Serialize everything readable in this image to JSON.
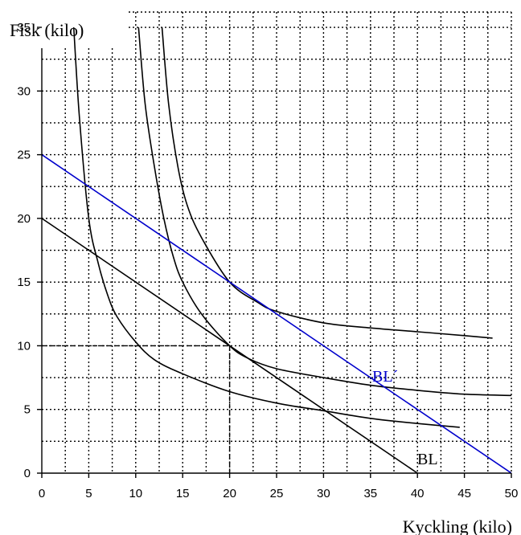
{
  "chart_data": {
    "type": "line",
    "xlabel": "Kyckling (kilo)",
    "ylabel": "Fisk (kilo)",
    "xlim": [
      0,
      50
    ],
    "ylim": [
      0,
      35
    ],
    "x_ticks": [
      0,
      5,
      10,
      15,
      20,
      25,
      30,
      35,
      40,
      45,
      50
    ],
    "y_ticks": [
      0,
      5,
      10,
      15,
      20,
      25,
      30,
      35
    ],
    "grid": true,
    "budget_lines": [
      {
        "name": "BL",
        "points": [
          [
            0,
            20
          ],
          [
            40,
            0
          ]
        ],
        "color": "#000000"
      },
      {
        "name": "BL´",
        "points": [
          [
            0,
            25
          ],
          [
            50,
            0
          ]
        ],
        "color": "#0000cc"
      }
    ],
    "indifference_curves": [
      {
        "points": [
          [
            3.4,
            35
          ],
          [
            4,
            28
          ],
          [
            5,
            20
          ],
          [
            6,
            16.5
          ],
          [
            7,
            14
          ],
          [
            8,
            12.3
          ],
          [
            10,
            10.3
          ],
          [
            12,
            8.9
          ],
          [
            15,
            7.8
          ],
          [
            20,
            6.4
          ],
          [
            25,
            5.5
          ],
          [
            30,
            4.9
          ],
          [
            35,
            4.3
          ],
          [
            40,
            3.9
          ],
          [
            44.5,
            3.6
          ]
        ]
      },
      {
        "points": [
          [
            10.3,
            35
          ],
          [
            11,
            29
          ],
          [
            12,
            24
          ],
          [
            13,
            20
          ],
          [
            14,
            17
          ],
          [
            15,
            15
          ],
          [
            17,
            12.5
          ],
          [
            20,
            10
          ],
          [
            22,
            9
          ],
          [
            25,
            8.2
          ],
          [
            30,
            7.5
          ],
          [
            35,
            6.9
          ],
          [
            40,
            6.5
          ],
          [
            45,
            6.2
          ],
          [
            50,
            6.1
          ]
        ]
      },
      {
        "points": [
          [
            12.8,
            35
          ],
          [
            13.5,
            29
          ],
          [
            14.5,
            24
          ],
          [
            15.5,
            21
          ],
          [
            17,
            18.5
          ],
          [
            20,
            15
          ],
          [
            23,
            13.4
          ],
          [
            25,
            12.7
          ],
          [
            30,
            11.8
          ],
          [
            35,
            11.4
          ],
          [
            40,
            11.1
          ],
          [
            45,
            10.8
          ],
          [
            48,
            10.6
          ]
        ]
      }
    ],
    "optimum_marker": {
      "x": 20,
      "y": 10
    },
    "annotations": [
      "BL",
      "BL´"
    ]
  }
}
